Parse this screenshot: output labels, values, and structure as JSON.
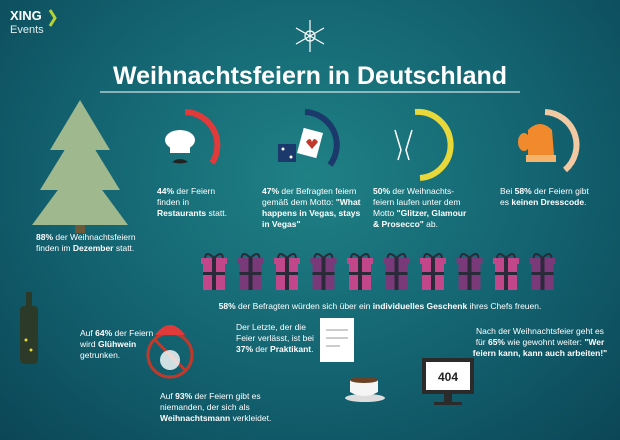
{
  "brand": {
    "name": "XING",
    "sub": "Events"
  },
  "title": "Weihnachtsfeiern in Deutschland",
  "facts": [
    {
      "parts": [
        "88%",
        " der Weihnachtsfeiern finden im ",
        "Dezember",
        " statt."
      ]
    },
    {
      "parts": [
        "44%",
        " der Feiern finden in ",
        "Restaurants",
        " statt."
      ]
    },
    {
      "parts": [
        "47%",
        " der Befragten feiern gemäß dem Motto: ",
        "\"What happens in Vegas, stays in Vegas\""
      ]
    },
    {
      "parts": [
        "50%",
        " der Weihnachts-feiern laufen unter dem Motto ",
        "\"Glitzer, Glamour & Prosecco\"",
        " ab."
      ]
    },
    {
      "parts": [
        "Bei ",
        "58%",
        " der Feiern gibt es ",
        "keinen Dresscode",
        "."
      ]
    },
    {
      "parts": [
        "58%",
        " der Befragten würden sich über ein ",
        "individuelles Geschenk",
        " ihres Chefs freuen."
      ]
    },
    {
      "parts": [
        "Auf ",
        "64%",
        " der Feiern wird ",
        "Glühwein",
        " getrunken."
      ]
    },
    {
      "parts": [
        "Auf ",
        "93%",
        " der Feiern gibt es niemanden, der sich als ",
        "Weihnachtsmann",
        " verkleidet."
      ]
    },
    {
      "parts": [
        "Der Letzte, der die Feier verlässt, ist bei ",
        "37%",
        " der ",
        "Praktikant",
        "."
      ]
    },
    {
      "parts": [
        "Nach der Weihnachtsfeier geht es für ",
        "65%",
        " wie gewohnt weiter: ",
        "\"Wer feiern kann, kann auch arbeiten!\""
      ]
    }
  ],
  "screen": "404"
}
